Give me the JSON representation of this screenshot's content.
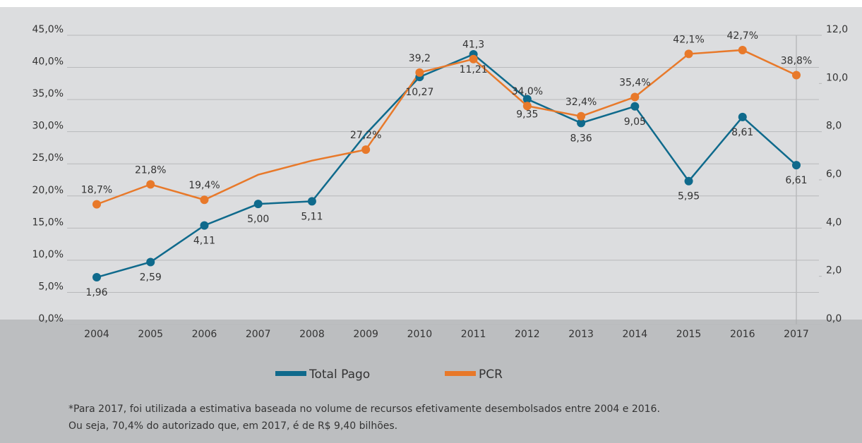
{
  "chart_data": {
    "type": "line",
    "categories": [
      "2004",
      "2005",
      "2006",
      "2007",
      "2008",
      "2009",
      "2010",
      "2011",
      "2012",
      "2013",
      "2014",
      "2015",
      "2016",
      "2017"
    ],
    "series": [
      {
        "name": "Total Pago",
        "color": "#0f6a8c",
        "axis": "y2",
        "values": [
          1.96,
          2.59,
          4.11,
          5.0,
          5.11,
          7.9,
          10.27,
          11.21,
          9.35,
          8.36,
          9.05,
          5.95,
          8.61,
          6.61
        ],
        "value_labels": [
          "1,96",
          "2,59",
          "4,11",
          "5,00",
          "5,11",
          null,
          "10,27",
          "11,21",
          "9,35",
          "8,36",
          "9,05",
          "5,95",
          "8,61",
          "6,61"
        ]
      },
      {
        "name": "PCR",
        "color": "#e8792a",
        "values": [
          18.7,
          21.8,
          19.4,
          23.3,
          25.5,
          27.2,
          39.2,
          41.3,
          34.0,
          32.4,
          35.4,
          42.1,
          42.7,
          38.8
        ],
        "value_labels": [
          "18,7%",
          "21,8%",
          "19,4%",
          null,
          null,
          "27,2%",
          "39,2",
          "41,3",
          "34,0%",
          "32,4%",
          "35,4%",
          "42,1%",
          "42,7%",
          "38,8%"
        ]
      }
    ],
    "ylim": [
      0,
      45
    ],
    "yticks": [
      {
        "value": 0,
        "label": "0,0%"
      },
      {
        "value": 5,
        "label": "5,0%"
      },
      {
        "value": 10,
        "label": "10,0%"
      },
      {
        "value": 15,
        "label": "15,0%"
      },
      {
        "value": 20,
        "label": "20,0%"
      },
      {
        "value": 25,
        "label": "25,0%"
      },
      {
        "value": 30,
        "label": "30,0%"
      },
      {
        "value": 35,
        "label": "35,0%"
      },
      {
        "value": 40,
        "label": "40,0%"
      },
      {
        "value": 45,
        "label": "45,0%"
      }
    ],
    "y2lim": [
      0,
      12
    ],
    "y2ticks": [
      {
        "value": 0,
        "label": "0,0"
      },
      {
        "value": 2,
        "label": "2,0"
      },
      {
        "value": 4,
        "label": "4,0"
      },
      {
        "value": 6,
        "label": "6,0"
      },
      {
        "value": 8,
        "label": "8,0"
      },
      {
        "value": 10,
        "label": "10,0"
      },
      {
        "value": 12,
        "label": "12,0"
      }
    ],
    "grid": true,
    "legend": "bottom",
    "footnote": [
      "*Para 2017, foi utilizada a estimativa baseada no volume de recursos efetivamente desembolsados entre 2004 e 2016.",
      "Ou seja, 70,4% do autorizado que, em 2017, é de R$ 9,40 bilhões."
    ]
  }
}
